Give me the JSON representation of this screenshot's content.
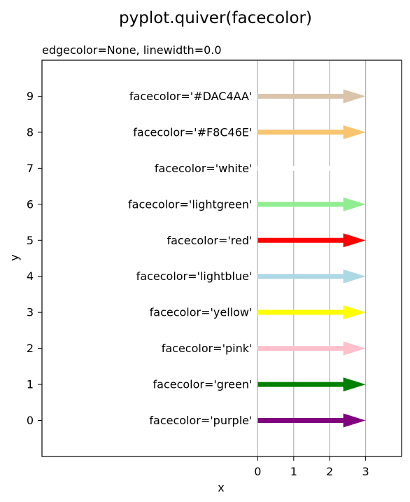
{
  "chart_data": {
    "type": "quiver",
    "title": "pyplot.quiver(facecolor)",
    "subtitle": "edgecolor=None, linewidth=0.0",
    "xlabel": "x",
    "ylabel": "y",
    "xlim": [
      -6,
      4
    ],
    "ylim": [
      -1,
      10
    ],
    "xticks": [
      0,
      1,
      2,
      3
    ],
    "yticks": [
      0,
      1,
      2,
      3,
      4,
      5,
      6,
      7,
      8,
      9
    ],
    "vlines": [
      0,
      1,
      2,
      3
    ],
    "arrows": [
      {
        "y": 0,
        "x": 0,
        "u": 3,
        "v": 0,
        "label": "facecolor='purple'",
        "color": "#800080"
      },
      {
        "y": 1,
        "x": 0,
        "u": 3,
        "v": 0,
        "label": "facecolor='green'",
        "color": "#008000"
      },
      {
        "y": 2,
        "x": 0,
        "u": 3,
        "v": 0,
        "label": "facecolor='pink'",
        "color": "#FFC0CB"
      },
      {
        "y": 3,
        "x": 0,
        "u": 3,
        "v": 0,
        "label": "facecolor='yellow'",
        "color": "#FFFF00"
      },
      {
        "y": 4,
        "x": 0,
        "u": 3,
        "v": 0,
        "label": "facecolor='lightblue'",
        "color": "#ADD8E6"
      },
      {
        "y": 5,
        "x": 0,
        "u": 3,
        "v": 0,
        "label": "facecolor='red'",
        "color": "#FF0000"
      },
      {
        "y": 6,
        "x": 0,
        "u": 3,
        "v": 0,
        "label": "facecolor='lightgreen'",
        "color": "#90EE90"
      },
      {
        "y": 7,
        "x": 0,
        "u": 3,
        "v": 0,
        "label": "facecolor='white'",
        "color": "#FFFFFF"
      },
      {
        "y": 8,
        "x": 0,
        "u": 3,
        "v": 0,
        "label": "facecolor='#F8C46E'",
        "color": "#F8C46E"
      },
      {
        "y": 9,
        "x": 0,
        "u": 3,
        "v": 0,
        "label": "facecolor='#DAC4AA'",
        "color": "#DAC4AA"
      }
    ]
  }
}
